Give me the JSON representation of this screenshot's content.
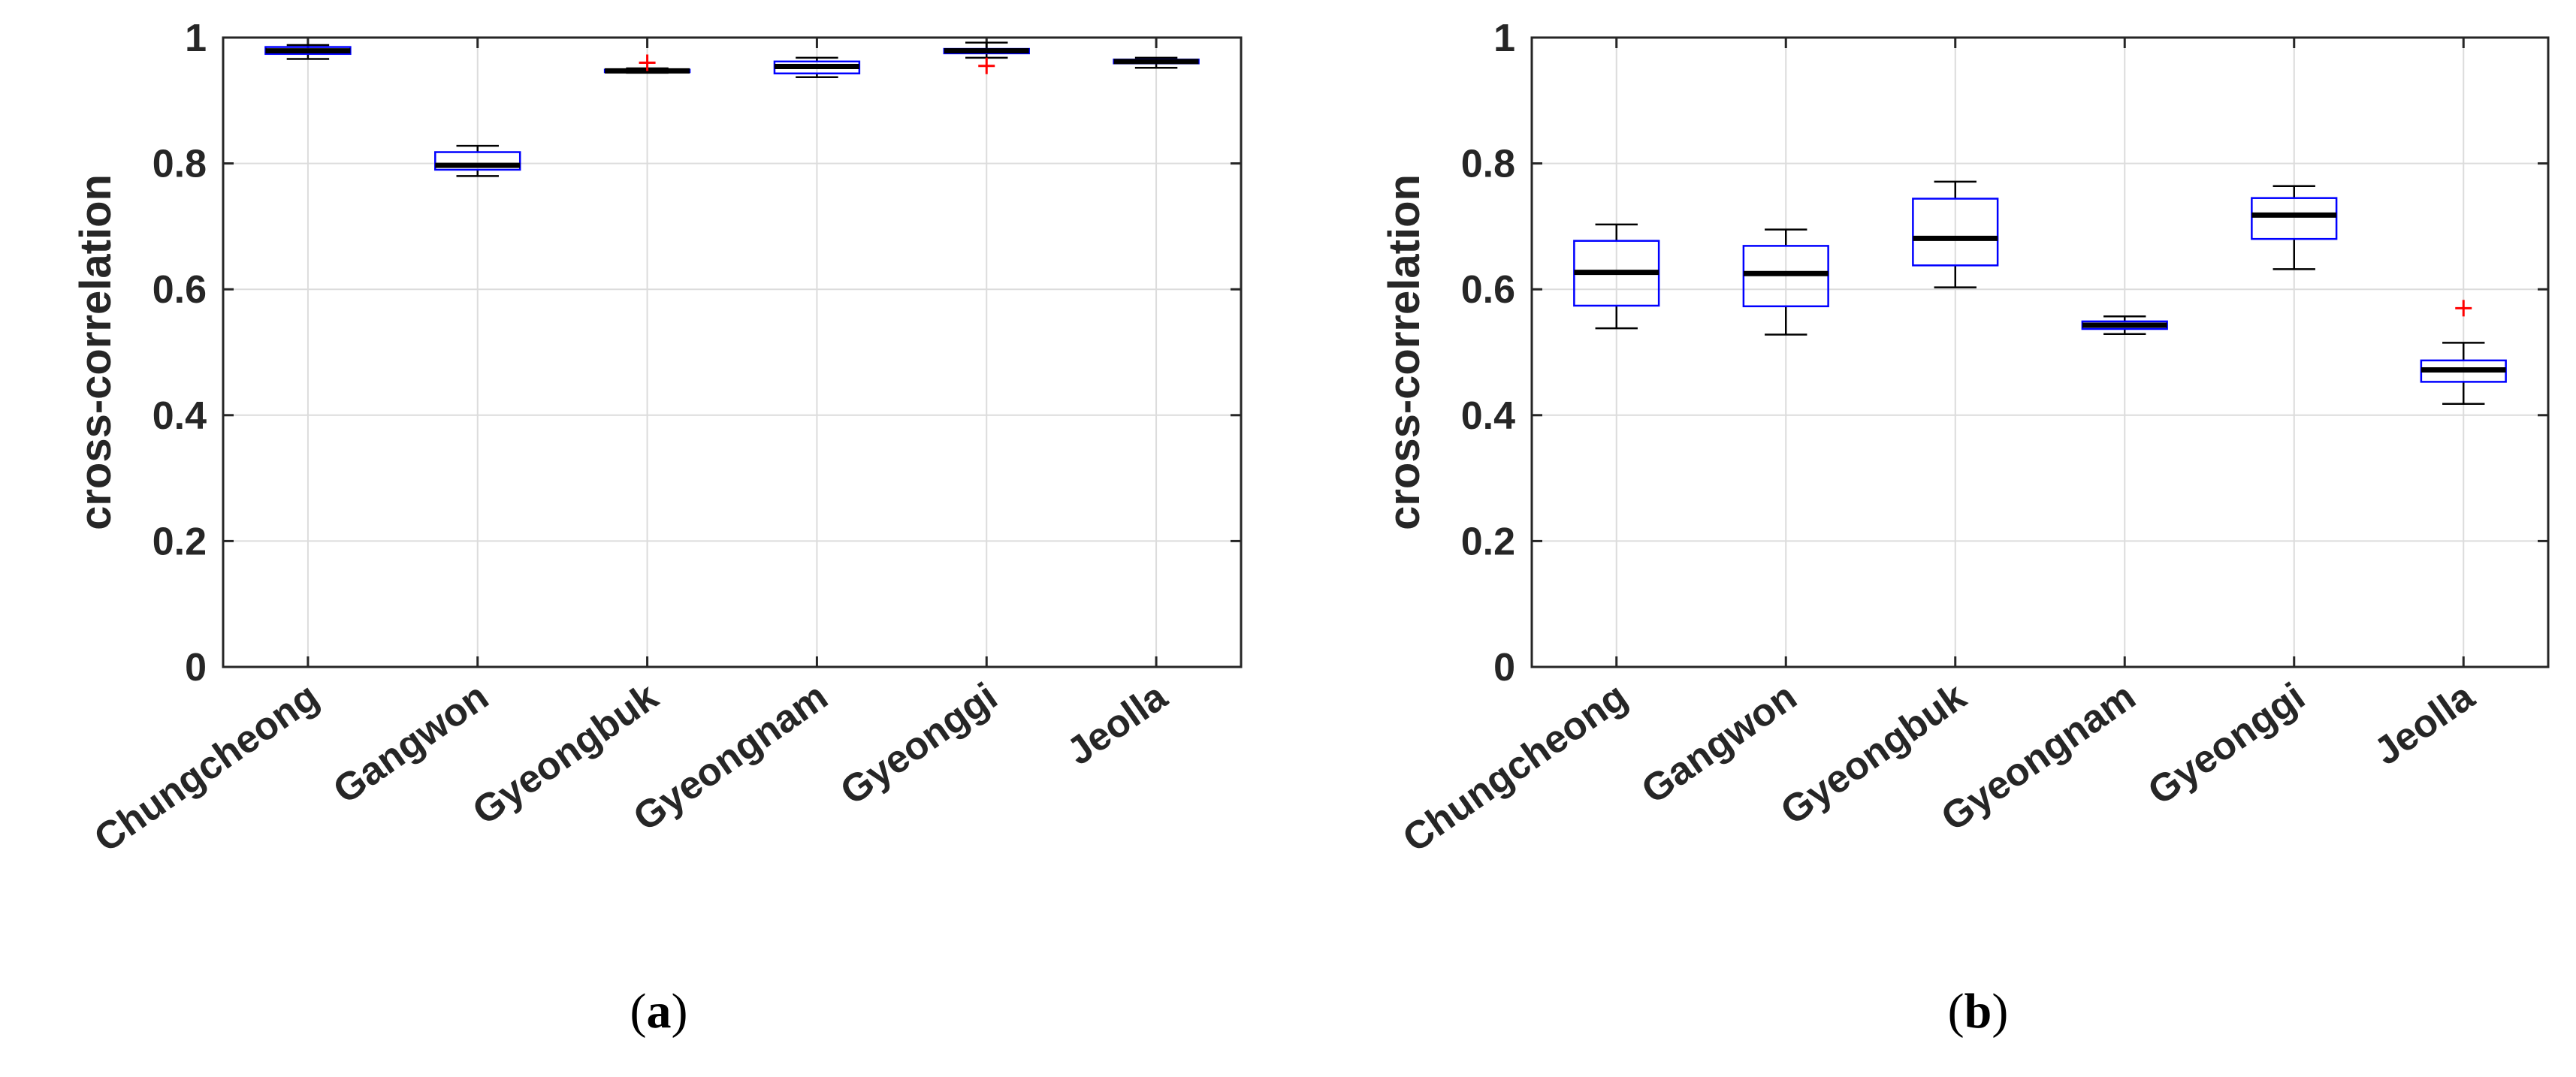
{
  "chart_data": [
    {
      "type": "box",
      "panel": "a",
      "ylabel": "cross-correlation",
      "ylim": [
        0,
        1
      ],
      "yticks": [
        "0",
        "0.2",
        "0.4",
        "0.6",
        "0.8",
        "1"
      ],
      "yticks_values": [
        0,
        0.2,
        0.4,
        0.6,
        0.8,
        1
      ],
      "grid": true,
      "categories": [
        "Chungcheong",
        "Gangwon",
        "Gyeongbuk",
        "Gyeongnam",
        "Gyeonggi",
        "Jeolla"
      ],
      "boxes": [
        {
          "category": "Chungcheong",
          "whisker_low": 0.966,
          "q1": 0.974,
          "median": 0.979,
          "q3": 0.985,
          "whisker_high": 0.988,
          "outliers": []
        },
        {
          "category": "Gangwon",
          "whisker_low": 0.78,
          "q1": 0.79,
          "median": 0.797,
          "q3": 0.818,
          "whisker_high": 0.828,
          "outliers": []
        },
        {
          "category": "Gyeongbuk",
          "whisker_low": 0.944,
          "q1": 0.945,
          "median": 0.947,
          "q3": 0.949,
          "whisker_high": 0.951,
          "outliers": [
            0.96
          ]
        },
        {
          "category": "Gyeongnam",
          "whisker_low": 0.937,
          "q1": 0.943,
          "median": 0.954,
          "q3": 0.962,
          "whisker_high": 0.968,
          "outliers": []
        },
        {
          "category": "Gyeonggi",
          "whisker_low": 0.968,
          "q1": 0.975,
          "median": 0.979,
          "q3": 0.982,
          "whisker_high": 0.992,
          "outliers": [
            0.955
          ]
        },
        {
          "category": "Jeolla",
          "whisker_low": 0.952,
          "q1": 0.959,
          "median": 0.962,
          "q3": 0.965,
          "whisker_high": 0.968,
          "outliers": []
        }
      ]
    },
    {
      "type": "box",
      "panel": "b",
      "ylabel": "cross-correlation",
      "ylim": [
        0,
        1
      ],
      "yticks": [
        "0",
        "0.2",
        "0.4",
        "0.6",
        "0.8",
        "1"
      ],
      "yticks_values": [
        0,
        0.2,
        0.4,
        0.6,
        0.8,
        1
      ],
      "grid": true,
      "categories": [
        "Chungcheong",
        "Gangwon",
        "Gyeongbuk",
        "Gyeongnam",
        "Gyeonggi",
        "Jeolla"
      ],
      "boxes": [
        {
          "category": "Chungcheong",
          "whisker_low": 0.538,
          "q1": 0.574,
          "median": 0.627,
          "q3": 0.677,
          "whisker_high": 0.703,
          "outliers": []
        },
        {
          "category": "Gangwon",
          "whisker_low": 0.528,
          "q1": 0.573,
          "median": 0.625,
          "q3": 0.669,
          "whisker_high": 0.695,
          "outliers": []
        },
        {
          "category": "Gyeongbuk",
          "whisker_low": 0.603,
          "q1": 0.638,
          "median": 0.681,
          "q3": 0.744,
          "whisker_high": 0.771,
          "outliers": []
        },
        {
          "category": "Gyeongnam",
          "whisker_low": 0.529,
          "q1": 0.537,
          "median": 0.543,
          "q3": 0.549,
          "whisker_high": 0.557,
          "outliers": []
        },
        {
          "category": "Gyeonggi",
          "whisker_low": 0.632,
          "q1": 0.68,
          "median": 0.718,
          "q3": 0.745,
          "whisker_high": 0.764,
          "outliers": []
        },
        {
          "category": "Jeolla",
          "whisker_low": 0.418,
          "q1": 0.453,
          "median": 0.472,
          "q3": 0.487,
          "whisker_high": 0.515,
          "outliers": [
            0.57
          ]
        }
      ]
    }
  ],
  "captions": {
    "a": {
      "open": "(",
      "letter": "a",
      "close": ")"
    },
    "b": {
      "open": "(",
      "letter": "b",
      "close": ")"
    }
  },
  "colors": {
    "box": "#0000ff",
    "median": "#000000",
    "whisker": "#000000",
    "outlier": "#ff0000",
    "grid": "#dcdcdc",
    "axis": "#262626"
  }
}
